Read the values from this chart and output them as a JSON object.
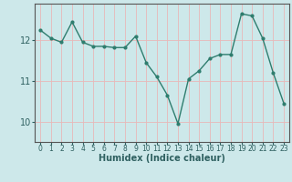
{
  "x": [
    0,
    1,
    2,
    3,
    4,
    5,
    6,
    7,
    8,
    9,
    10,
    11,
    12,
    13,
    14,
    15,
    16,
    17,
    18,
    19,
    20,
    21,
    22,
    23
  ],
  "y": [
    12.25,
    12.05,
    11.95,
    12.45,
    11.95,
    11.85,
    11.85,
    11.82,
    11.82,
    12.1,
    11.45,
    11.1,
    10.65,
    9.95,
    11.05,
    11.25,
    11.55,
    11.65,
    11.65,
    12.65,
    12.6,
    12.05,
    11.2,
    10.45
  ],
  "line_color": "#2e7d6e",
  "marker": "o",
  "marker_size": 2,
  "bg_color": "#cde8ea",
  "grid_color": "#e8b8b8",
  "xlabel": "Humidex (Indice chaleur)",
  "yticks": [
    10,
    11,
    12
  ],
  "ylim": [
    9.5,
    12.9
  ],
  "xlim": [
    -0.5,
    23.5
  ],
  "xlabel_fontsize": 7,
  "ytick_fontsize": 7,
  "xtick_fontsize": 5.5,
  "linewidth": 1.0
}
